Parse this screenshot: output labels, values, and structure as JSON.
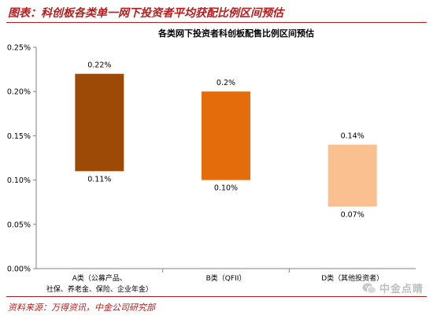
{
  "figure": {
    "title": "图表：科创板各类单一网下投资者平均获配比例区间预估",
    "source": "资料来源：万得资讯，中金公司研究部",
    "title_color": "#b71c1c",
    "source_color": "#b71c1c",
    "rule_color": "#b71c1c"
  },
  "watermark": {
    "text": "中金点睛",
    "icon": "wechat-icon"
  },
  "chart_data": {
    "type": "bar",
    "subtype": "floating-range",
    "title": "各类网下投资者科创板配售比例区间预估",
    "xlabel": "",
    "ylabel": "",
    "ylim": [
      0,
      0.25
    ],
    "yticks": [
      "0.00%",
      "0.05%",
      "0.10%",
      "0.15%",
      "0.20%",
      "0.25%"
    ],
    "ytick_values": [
      0,
      0.05,
      0.1,
      0.15,
      0.2,
      0.25
    ],
    "grid": false,
    "legend": "none",
    "categories": [
      [
        "A类（公募产品、",
        "社保、养老金、保险、企业年金）"
      ],
      [
        "B类（QFII）"
      ],
      [
        "D类（其他投资者）"
      ]
    ],
    "ranges": [
      {
        "low": 0.11,
        "high": 0.22,
        "low_label": "0.11%",
        "high_label": "0.22%",
        "color": "#9c4a06"
      },
      {
        "low": 0.1,
        "high": 0.2,
        "low_label": "0.10%",
        "high_label": "0.2%",
        "color": "#e46c0a"
      },
      {
        "low": 0.07,
        "high": 0.14,
        "low_label": "0.07%",
        "high_label": "0.14%",
        "color": "#fac090"
      }
    ]
  }
}
